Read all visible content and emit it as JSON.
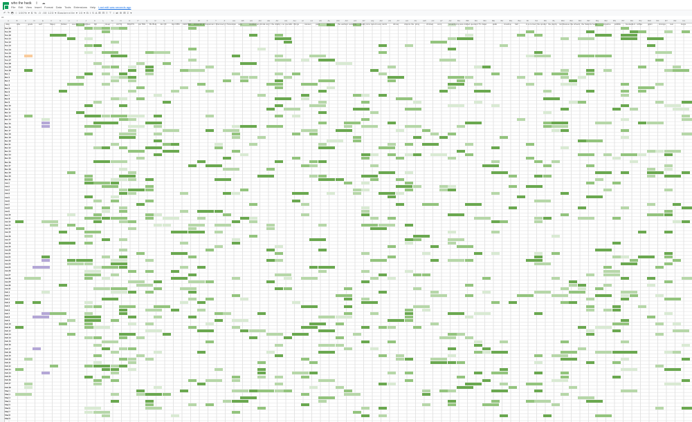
{
  "app": {
    "title": "who the hack",
    "menus": [
      "File",
      "Edit",
      "View",
      "Insert",
      "Format",
      "Data",
      "Tools",
      "Extensions",
      "Help",
      "Last edit was seconds ago"
    ],
    "toolbar_text": "↶ ↷ 🖶 ⌖ 100% ▾  $ % .0 .00 123 ▾  Baskerville ▾  10 ▾  B I S A  ⊞ ⊟ ≡ ⊤ ↕ ⇄ ⊕ ⊞ Σ ▾",
    "name_box": "A1"
  },
  "columns": [
    "A",
    "B",
    "C",
    "D",
    "E",
    "F",
    "G",
    "H",
    "I",
    "J",
    "K",
    "L",
    "M",
    "N",
    "O",
    "P",
    "Q",
    "R",
    "S",
    "T",
    "U",
    "V",
    "W",
    "X",
    "Y",
    "Z",
    "AA",
    "AB",
    "AC",
    "AD",
    "AE",
    "AF",
    "AG",
    "AH",
    "AI",
    "AJ",
    "AK",
    "AL",
    "AM",
    "AN",
    "AO",
    "AP",
    "AQ",
    "AR",
    "AS",
    "AT",
    "AU",
    "AV",
    "AW",
    "AX",
    "AY",
    "AZ",
    "BA",
    "BB",
    "BC",
    "BD",
    "BE",
    "BF",
    "BG",
    "BH",
    "BI",
    "BJ",
    "BK",
    "BL",
    "BM",
    "BN",
    "BO",
    "BP",
    "BQ",
    "BR",
    "BS",
    "BT",
    "BU",
    "BV",
    "BW",
    "BX",
    "BY",
    "BZ",
    "CA"
  ],
  "header_labels": [
    "date",
    "Abe",
    "goals",
    "self",
    "Sleep",
    "hidden",
    "events",
    "hobbies",
    "bill",
    "sleep",
    "ACTO",
    "BOATS",
    "LE TRE",
    "BL BLE",
    "EL OF",
    "GH OBS",
    "CENTRA",
    "circus for dinner",
    "Snowman to Jerry",
    "Discovery 1st NEW",
    "Television",
    "cara",
    "cookies and then there",
    "kinda very lovely ever",
    "the vitality after",
    "so overalls to the point",
    "things",
    "causes",
    "paid",
    "Jam",
    "the earliest documents",
    "outskirts",
    "Really small cake",
    "recent events",
    "cards",
    "dinner",
    "visions the compass",
    "sting",
    "chicken",
    "conc",
    "rewarded at Suit",
    "was crafted from",
    "quotient TV things",
    "travel",
    "walk",
    "creative",
    "hall",
    "in a conversation time",
    "the spoiler",
    "the plenty",
    "tumbleweed",
    "the wheels",
    "the Saturday",
    "foods",
    "kreative",
    "wildlife",
    "bestsellers",
    "coffee",
    "grain",
    "strange",
    "rest",
    "loops"
  ],
  "dates": [
    "Nov 18",
    "Nov 19",
    "Nov 20",
    "Nov 21",
    "Nov 22",
    "Nov 23",
    "Nov 24",
    "Nov 25",
    "Nov 26",
    "Nov 27",
    "Nov 28",
    "Nov 29",
    "Nov 30",
    "Dec 1",
    "Dec 2",
    "Dec 3",
    "Dec 4",
    "Dec 5",
    "Dec 6",
    "Dec 7",
    "Dec 8",
    "Dec 9",
    "Dec 10",
    "Dec 11",
    "Dec 12",
    "Dec 13",
    "Dec 14",
    "Dec 15",
    "Dec 16",
    "Dec 17",
    "Dec 18",
    "Dec 19",
    "Dec 20",
    "Dec 21",
    "Dec 22",
    "Dec 23",
    "Dec 24",
    "Dec 25",
    "Dec 26",
    "Dec 27",
    "Dec 28",
    "Dec 29",
    "Dec 30",
    "Dec 31",
    "Jan 1",
    "Jan 2",
    "Jan 3",
    "Jan 4",
    "Jan 5",
    "Jan 6",
    "Jan 7",
    "Jan 8",
    "Jan 9",
    "Jan 10",
    "Jan 11",
    "Jan 12",
    "Jan 13",
    "Jan 14",
    "Jan 15",
    "Jan 16",
    "Jan 17",
    "Jan 18",
    "Jan 19",
    "Jan 20",
    "Jan 21",
    "Jan 22",
    "Jan 23",
    "Jan 24",
    "Jan 25",
    "Jan 26",
    "Jan 27",
    "Jan 28",
    "Jan 29",
    "Jan 30",
    "Jan 31",
    "Feb 1",
    "Feb 2",
    "Feb 3",
    "Feb 4",
    "Feb 5",
    "Feb 6",
    "Feb 7",
    "Feb 8",
    "Feb 9",
    "Feb 10",
    "Feb 11",
    "Feb 12",
    "Feb 13",
    "Feb 14",
    "Feb 15",
    "Feb 16",
    "Feb 17",
    "Feb 18",
    "Feb 19",
    "Feb 20",
    "Feb 21",
    "Feb 22",
    "Feb 23",
    "Feb 24",
    "Feb 25",
    "Feb 26",
    "Feb 27",
    "Feb 28",
    "Mar 1",
    "Mar 2",
    "Mar 3",
    "Mar 4",
    "Mar 5",
    "Mar 6",
    "Mar 7",
    "Mar 8",
    "Mar 9",
    "Mar 10",
    "Mar 11",
    "Mar 12"
  ],
  "colors": {
    "light": "#b6d7a8",
    "mid": "#93c47d",
    "dark": "#6aa84f",
    "pale": "#d9ead3",
    "purple": "#b4a7d6",
    "orange": "#f9cb9c",
    "blue": "#a4c2f4"
  }
}
